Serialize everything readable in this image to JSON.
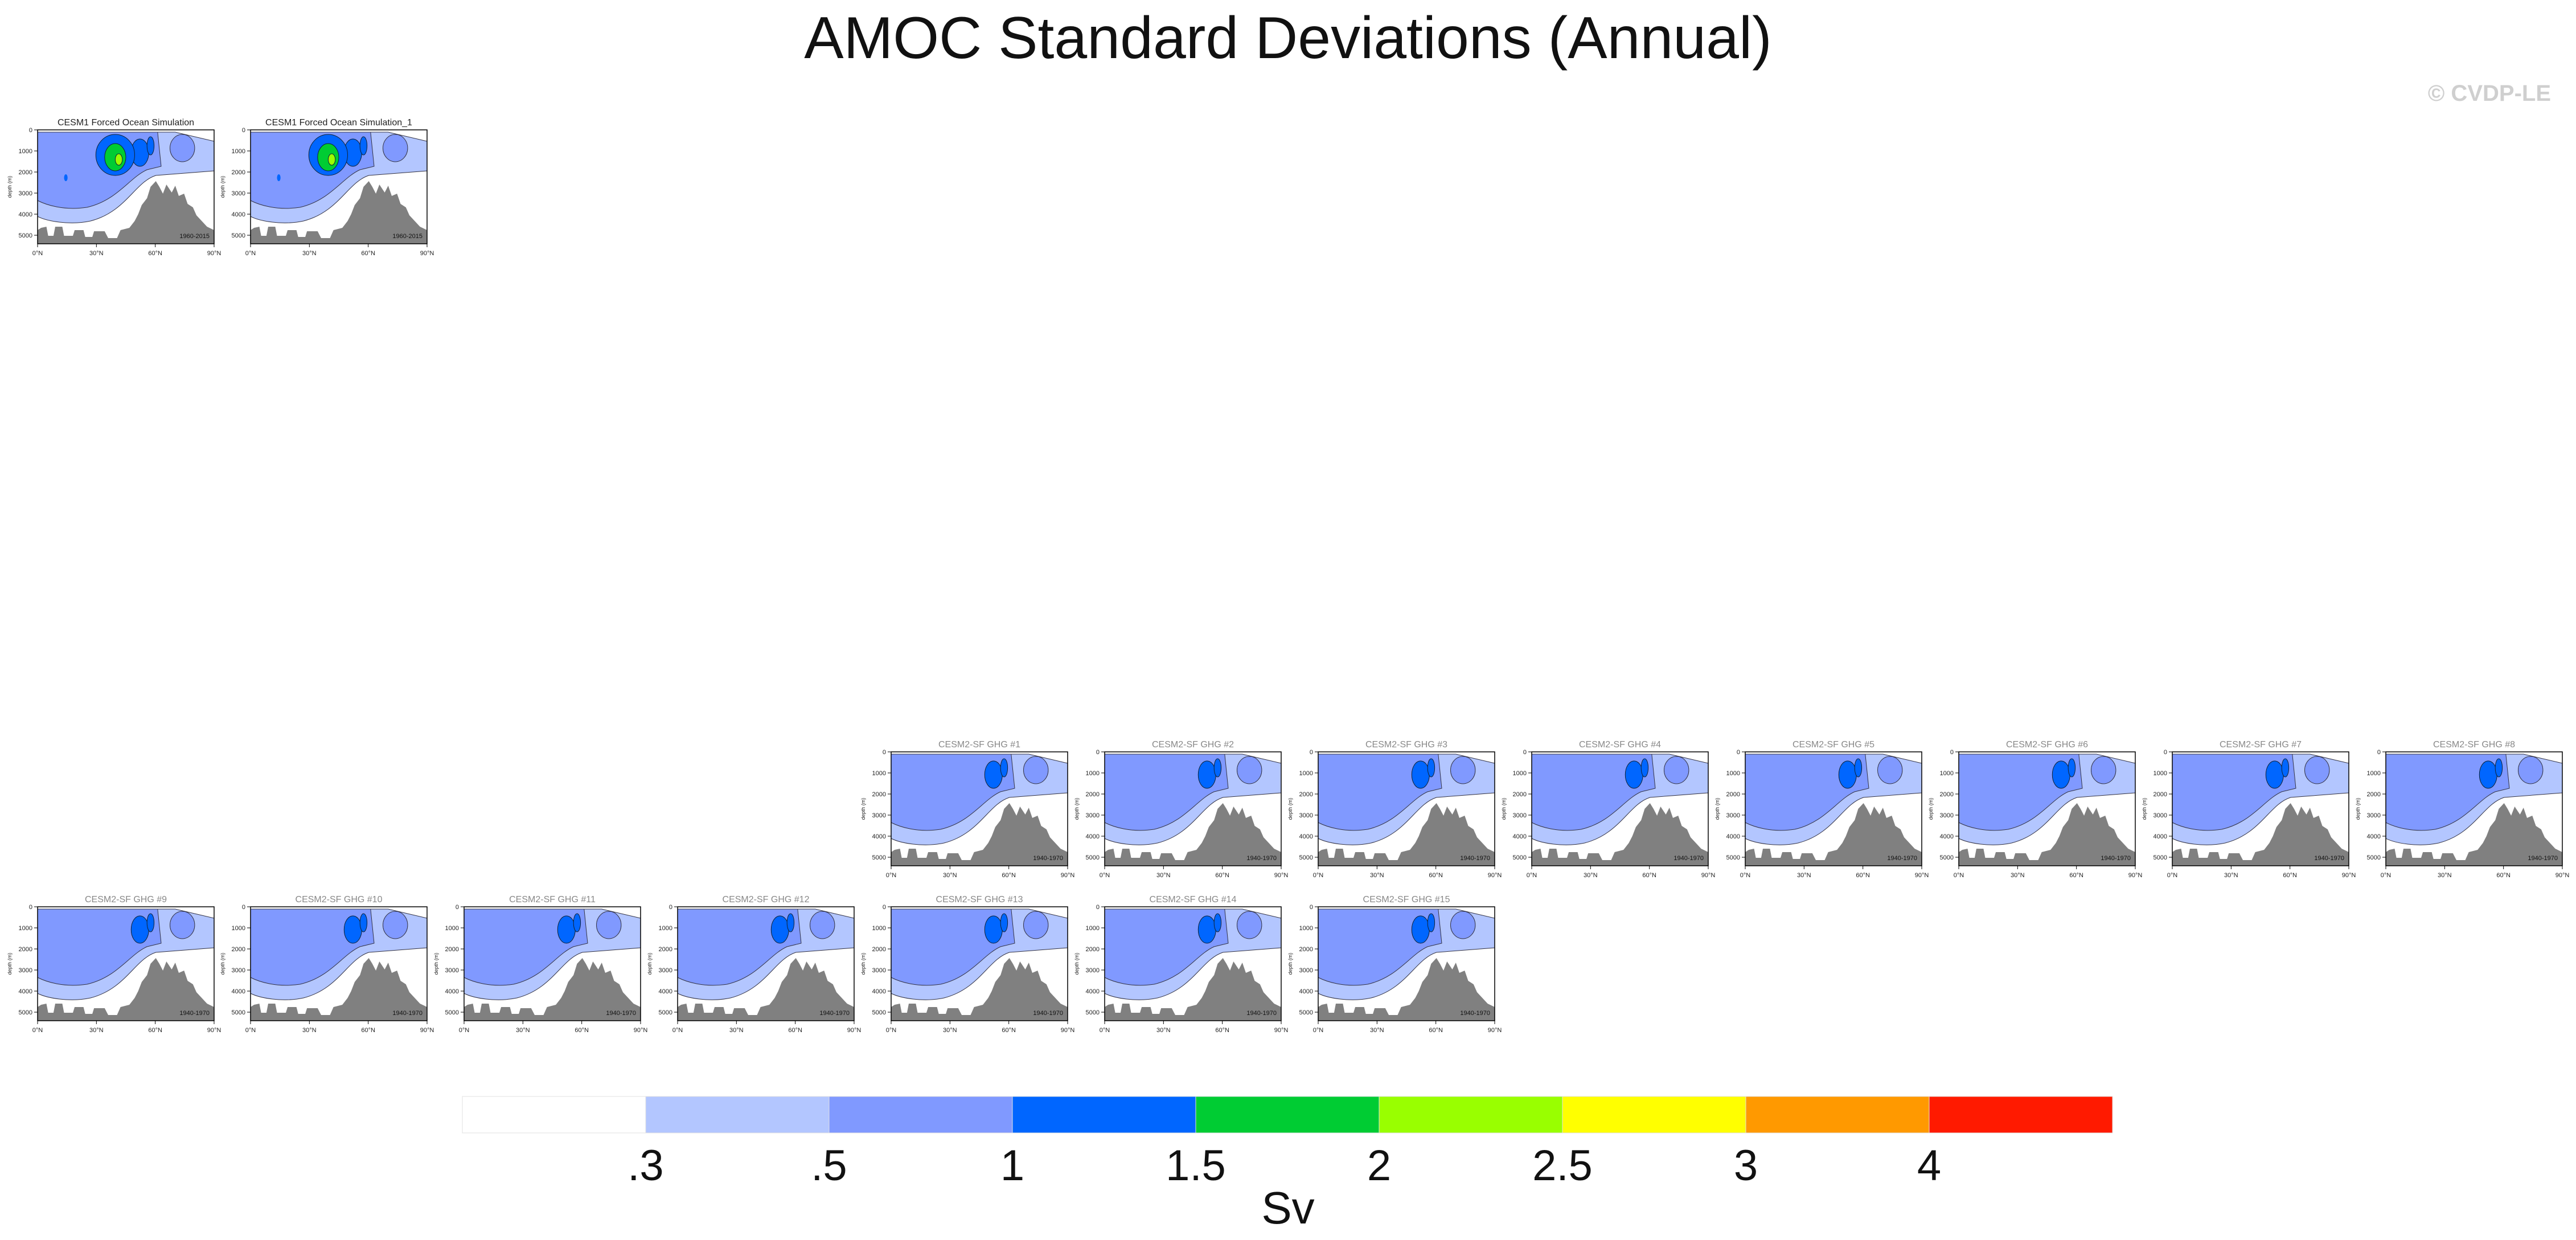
{
  "title": "AMOC Standard Deviations (Annual)",
  "watermark": "© CVDP-LE",
  "colors": {
    "levels": [
      "#ffffff",
      "#b3c6ff",
      "#8099ff",
      "#0066ff",
      "#00cc33",
      "#99ff00",
      "#ffff00",
      "#ff9900",
      "#ff1a00"
    ],
    "bathymetry": "#808080"
  },
  "chart_data": {
    "type": "contour-panel-grid",
    "x_ticks": [
      "0°N",
      "30°N",
      "60°N",
      "90°N"
    ],
    "y_ticks": [
      "0",
      "1000",
      "2000",
      "3000",
      "4000",
      "5000"
    ],
    "y_label": "depth (m)",
    "panels": [
      {
        "title": "CESM1 Forced Ocean Simulation",
        "period": "1960-2015",
        "style": "fos"
      },
      {
        "title": "CESM1 Forced Ocean Simulation_1",
        "period": "1960-2015",
        "style": "fos"
      },
      {
        "title": "CESM2-SF GHG #1",
        "period": "1940-1970",
        "style": "ghg"
      },
      {
        "title": "CESM2-SF GHG #2",
        "period": "1940-1970",
        "style": "ghg"
      },
      {
        "title": "CESM2-SF GHG #3",
        "period": "1940-1970",
        "style": "ghg"
      },
      {
        "title": "CESM2-SF GHG #4",
        "period": "1940-1970",
        "style": "ghg"
      },
      {
        "title": "CESM2-SF GHG #5",
        "period": "1940-1970",
        "style": "ghg"
      },
      {
        "title": "CESM2-SF GHG #6",
        "period": "1940-1970",
        "style": "ghg"
      },
      {
        "title": "CESM2-SF GHG #7",
        "period": "1940-1970",
        "style": "ghg"
      },
      {
        "title": "CESM2-SF GHG #8",
        "period": "1940-1970",
        "style": "ghg"
      },
      {
        "title": "CESM2-SF GHG #9",
        "period": "1940-1970",
        "style": "ghg"
      },
      {
        "title": "CESM2-SF GHG #10",
        "period": "1940-1970",
        "style": "ghg"
      },
      {
        "title": "CESM2-SF GHG #11",
        "period": "1940-1970",
        "style": "ghg"
      },
      {
        "title": "CESM2-SF GHG #12",
        "period": "1940-1970",
        "style": "ghg"
      },
      {
        "title": "CESM2-SF GHG #13",
        "period": "1940-1970",
        "style": "ghg"
      },
      {
        "title": "CESM2-SF GHG #14",
        "period": "1940-1970",
        "style": "ghg"
      },
      {
        "title": "CESM2-SF GHG #15",
        "period": "1940-1970",
        "style": "ghg"
      }
    ],
    "colorbar": {
      "labels": [
        ".3",
        ".5",
        "1",
        "1.5",
        "2",
        "2.5",
        "3",
        "4"
      ],
      "units": "Sv"
    }
  }
}
